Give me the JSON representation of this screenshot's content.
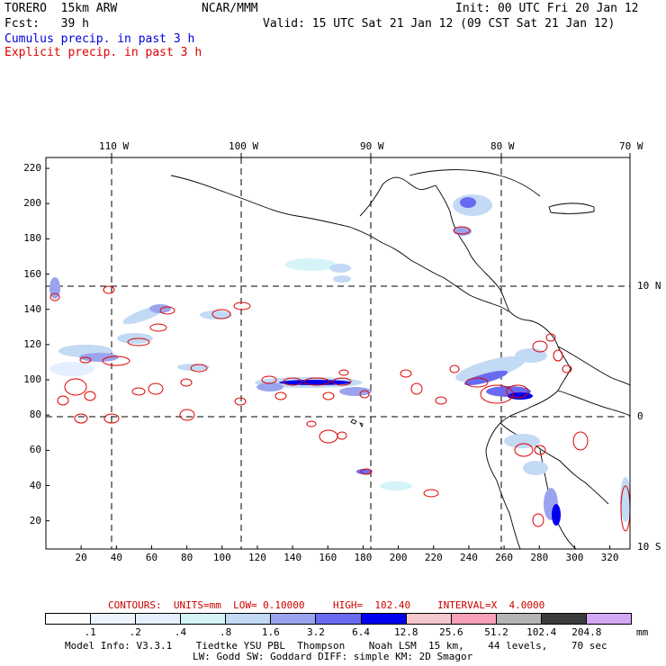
{
  "header": {
    "model": "TORERO  15km ARW",
    "org": "NCAR/MMM",
    "init": "Init: 00 UTC Fri 20 Jan 12",
    "fcst": "Fcst:   39 h",
    "valid": "Valid: 15 UTC Sat 21 Jan 12 (09 CST Sat 21 Jan 12)",
    "cumulus_label": "Cumulus precip. in past 3 h",
    "explicit_label": "Explicit precip. in past 3 h",
    "cumulus_color": "#0000dd",
    "explicit_color": "#dd0000"
  },
  "map": {
    "lon_labels": [
      "110 W",
      "100 W",
      "90 W",
      "80 W",
      "70 W"
    ],
    "lat_labels": [
      "10 N",
      "0",
      "10 S"
    ],
    "x_ticks": [
      "20",
      "40",
      "60",
      "80",
      "100",
      "120",
      "140",
      "160",
      "180",
      "200",
      "220",
      "240",
      "260",
      "280",
      "300",
      "320"
    ],
    "y_ticks": [
      "20",
      "40",
      "60",
      "80",
      "100",
      "120",
      "140",
      "160",
      "180",
      "200",
      "220"
    ]
  },
  "contours_info": {
    "units": "CONTOURS:  UNITS=mm  LOW= 0.10000",
    "high": "HIGH=  102.40",
    "interval": "INTERVAL=X  4.0000",
    "color": "#cc0000"
  },
  "colorbar": {
    "colors": [
      "#ffffff",
      "#eef4ff",
      "#e4f0ff",
      "#d4f4f8",
      "#c2daf4",
      "#9aa4ee",
      "#6a6af0",
      "#0000ee",
      "#f4c8cc",
      "#f8a0b8",
      "#b4b4b4",
      "#3c3c3c",
      "#d4a8f4"
    ],
    "labels": [
      ".1",
      ".2",
      ".4",
      ".8",
      "1.6",
      "3.2",
      "6.4",
      "12.8",
      "25.6",
      "51.2",
      "102.4",
      "204.8"
    ],
    "unit": "mm"
  },
  "footer": {
    "line1": "Model Info: V3.3.1    Tiedtke YSU PBL  Thompson    Noah LSM  15 km,    44 levels,    70 sec",
    "line2": "LW: Godd SW: Goddard DIFF: simple KM: 2D Smagor"
  }
}
